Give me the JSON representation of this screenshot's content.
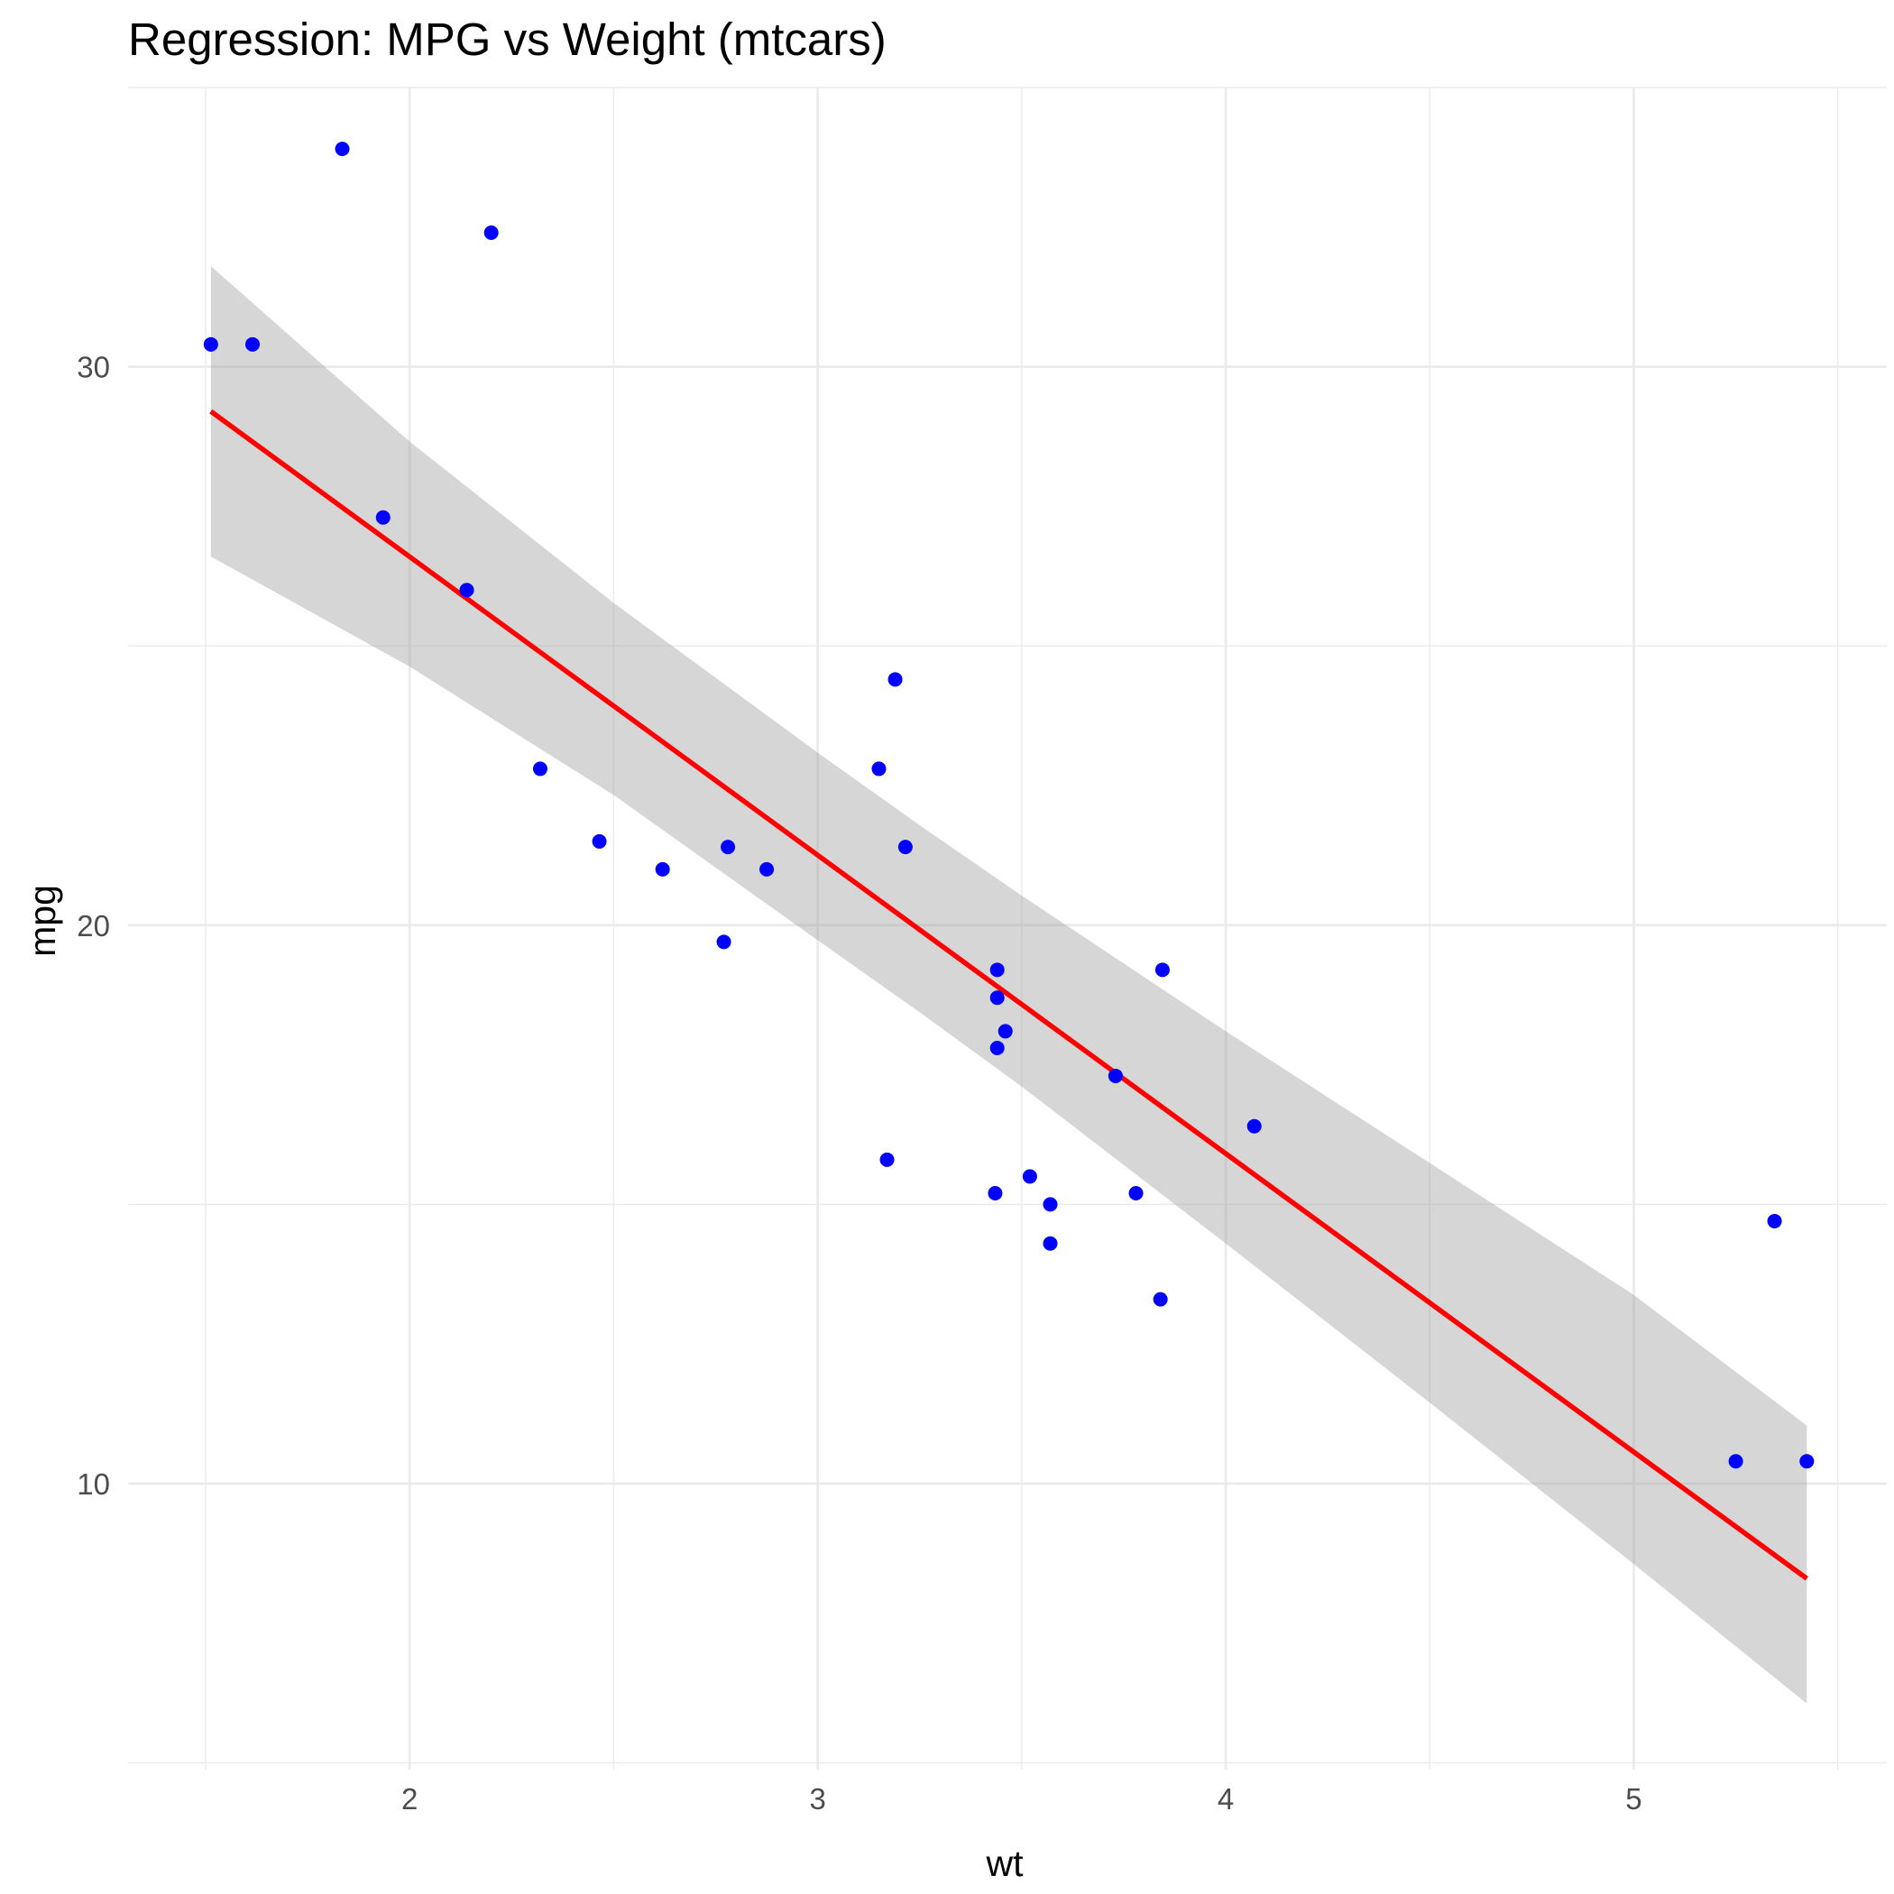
{
  "chart_data": {
    "type": "scatter",
    "title": "Regression: MPG vs Weight (mtcars)",
    "xlabel": "wt",
    "ylabel": "mpg",
    "xlim": [
      1.31,
      5.62
    ],
    "ylim": [
      4.88,
      35.0
    ],
    "x_ticks": [
      2,
      3,
      4,
      5
    ],
    "y_ticks": [
      10,
      20,
      30
    ],
    "x_minor_ticks": [
      1.5,
      2.5,
      3.5,
      4.5,
      5.5
    ],
    "y_minor_ticks": [
      5,
      15,
      25,
      35
    ],
    "grid": true,
    "legend": "none",
    "point_color": "#0000FF",
    "line_color": "#FF0000",
    "band_color": "#999999",
    "series": [
      {
        "type": "points",
        "x": [
          2.62,
          2.875,
          2.32,
          3.215,
          3.44,
          3.46,
          3.57,
          3.19,
          3.15,
          3.44,
          3.44,
          4.07,
          3.73,
          3.78,
          5.25,
          5.424,
          5.345,
          2.2,
          1.615,
          1.835,
          2.465,
          3.52,
          3.435,
          3.84,
          3.845,
          1.935,
          2.14,
          1.513,
          3.17,
          2.77,
          3.57,
          2.78
        ],
        "y": [
          21.0,
          21.0,
          22.8,
          21.4,
          18.7,
          18.1,
          14.3,
          24.4,
          22.8,
          19.2,
          17.8,
          16.4,
          17.3,
          15.2,
          10.4,
          10.4,
          14.7,
          32.4,
          30.4,
          33.9,
          21.5,
          15.5,
          15.2,
          13.3,
          19.2,
          27.3,
          26.0,
          30.4,
          15.8,
          19.7,
          15.0,
          21.4
        ]
      },
      {
        "type": "fit",
        "x": [
          1.513,
          5.424
        ],
        "y": [
          29.2,
          8.3
        ]
      },
      {
        "type": "band",
        "x": [
          1.513,
          2.0,
          2.5,
          3.0,
          3.25,
          3.5,
          4.0,
          4.5,
          5.0,
          5.424
        ],
        "lower": [
          26.6,
          24.63,
          22.33,
          19.73,
          18.44,
          17.11,
          14.3,
          11.45,
          8.56,
          6.06
        ],
        "upper": [
          31.8,
          28.66,
          25.77,
          23.09,
          21.79,
          20.53,
          18.1,
          15.74,
          13.38,
          11.04
        ]
      }
    ]
  }
}
